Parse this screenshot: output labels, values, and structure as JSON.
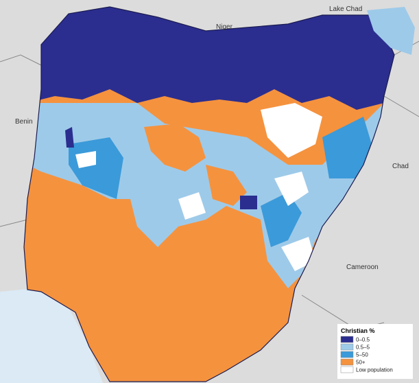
{
  "labels": {
    "lake_chad": "Lake Chad",
    "niger": "Niger",
    "benin": "Benin",
    "chad": "Chad",
    "cameroon": "Cameroon"
  },
  "legend": {
    "title": "Christian %",
    "items": [
      "0–0.5",
      "0.5–5",
      "5–50",
      "50+",
      "Low population"
    ]
  }
}
